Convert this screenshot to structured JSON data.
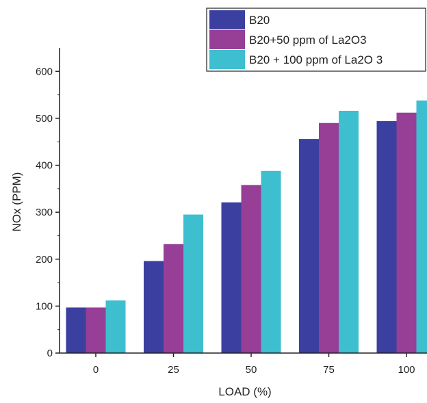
{
  "chart_data": {
    "type": "bar",
    "xlabel": "LOAD (%)",
    "ylabel": "NOx (PPM)",
    "categories": [
      "0",
      "25",
      "50",
      "75",
      "100"
    ],
    "series": [
      {
        "name": "B20",
        "color": "#3b3fa0",
        "values": [
          97,
          196,
          321,
          456,
          494
        ]
      },
      {
        "name": "B20+50 ppm of La2O3",
        "color": "#973f96",
        "values": [
          97,
          232,
          358,
          490,
          512
        ]
      },
      {
        "name": "B20 + 100 ppm of La2O 3",
        "color": "#3dbfd0",
        "values": [
          112,
          295,
          388,
          516,
          538
        ]
      }
    ],
    "ylim": [
      0,
      650
    ],
    "yticks": [
      0,
      100,
      200,
      300,
      400,
      500,
      600
    ],
    "legend_position": "top-right",
    "grid": false
  }
}
